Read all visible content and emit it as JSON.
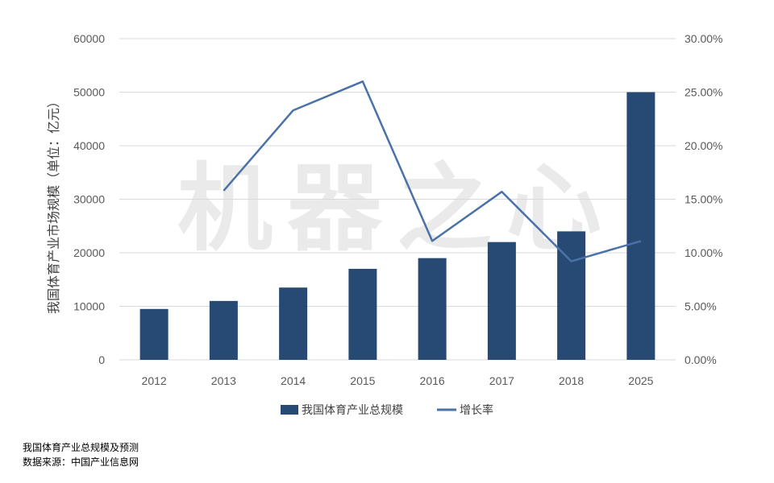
{
  "chart_data": {
    "type": "bar",
    "categories": [
      "2012",
      "2013",
      "2014",
      "2015",
      "2016",
      "2017",
      "2018",
      "2025"
    ],
    "series": [
      {
        "name": "我国体育产业总规模",
        "type": "bar",
        "axis": "left",
        "color": "#264a73",
        "values": [
          9500,
          11000,
          13500,
          17000,
          19000,
          22000,
          24000,
          50000
        ]
      },
      {
        "name": "增长率",
        "type": "line",
        "axis": "right",
        "color": "#4a72a8",
        "values": [
          null,
          0.158,
          0.233,
          0.26,
          0.111,
          0.157,
          0.092,
          0.111
        ]
      }
    ],
    "ylabel": "我国体育产业市场规模（单位：亿元）",
    "ylim": [
      0,
      60000
    ],
    "yticks": [
      "0",
      "10000",
      "20000",
      "30000",
      "40000",
      "50000",
      "60000"
    ],
    "y2lim": [
      0,
      0.3
    ],
    "y2ticks": [
      "0.00%",
      "5.00%",
      "10.00%",
      "15.00%",
      "20.00%",
      "25.00%",
      "30.00%"
    ],
    "grid": true,
    "legend": "bottom-center"
  },
  "watermark": "机器之心",
  "caption": {
    "title": "我国体育产业总规模及预测",
    "source": "数据来源：中国产业信息网"
  }
}
